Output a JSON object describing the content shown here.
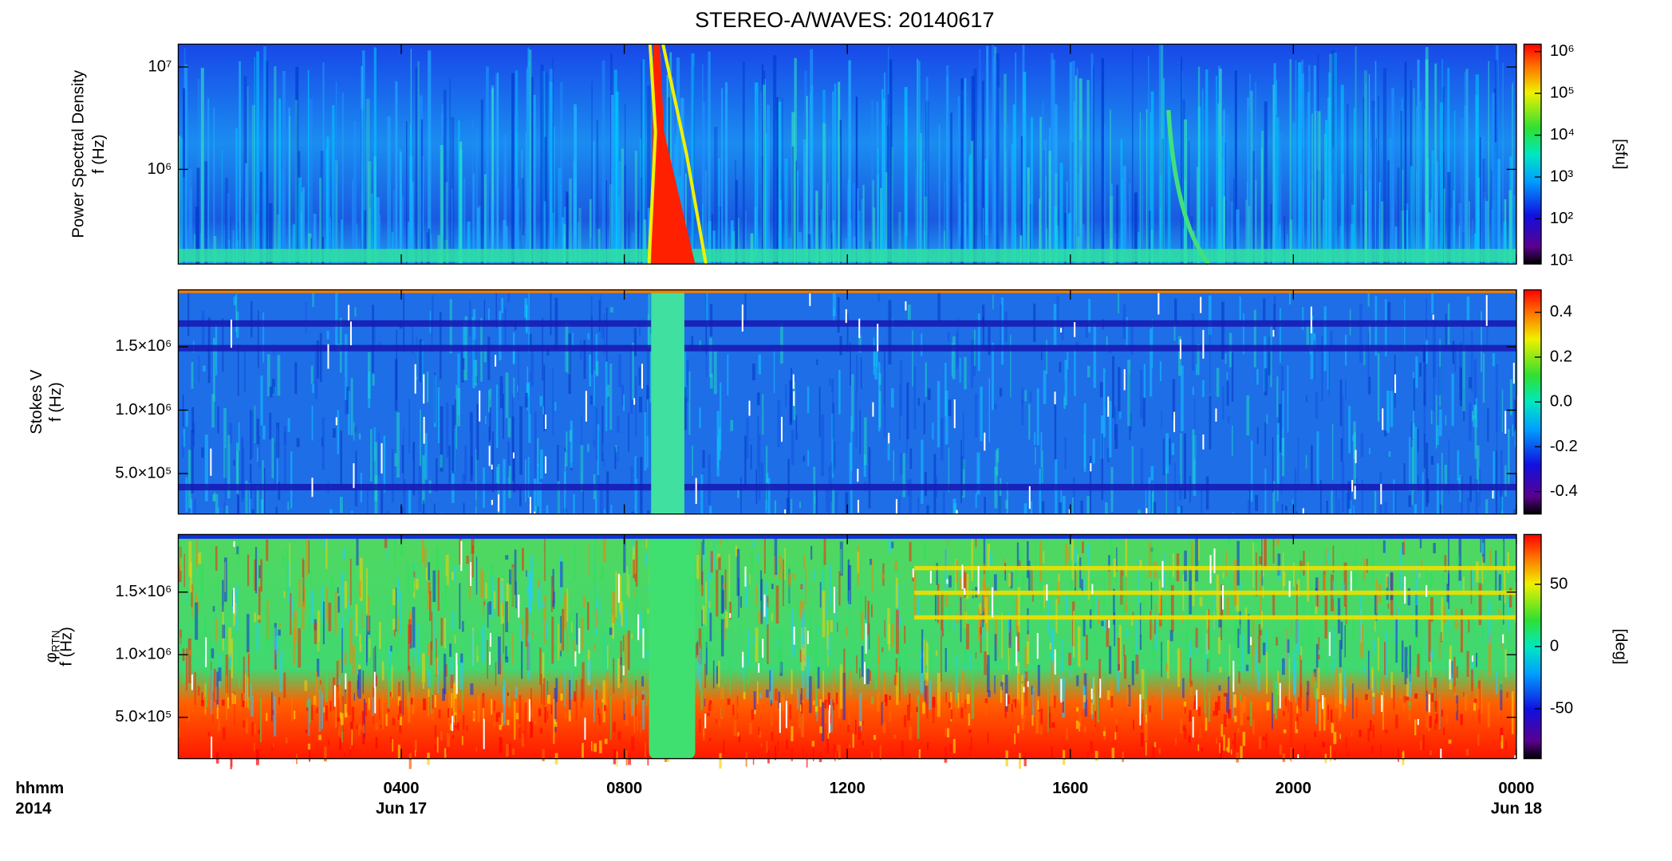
{
  "chart_data": [
    {
      "type": "spectrogram",
      "title": "STEREO-A/WAVES: 20140617",
      "quantity": "Power Spectral Density",
      "ylabel": "f (Hz)",
      "ylog": true,
      "ylim": [
        119000,
        16700000
      ],
      "yticks": [
        {
          "value": 1000000,
          "label": "10⁶"
        },
        {
          "value": 10000000,
          "label": "10⁷"
        }
      ],
      "colorbar": {
        "log": true,
        "lim": [
          8.3,
          1500000
        ],
        "ticks": [
          {
            "value": 10,
            "label": "10¹"
          },
          {
            "value": 100,
            "label": "10²"
          },
          {
            "value": 1000,
            "label": "10³"
          },
          {
            "value": 10000,
            "label": "10⁴"
          },
          {
            "value": 100000,
            "label": "10⁵"
          },
          {
            "value": 1000000,
            "label": "10⁶"
          }
        ],
        "label": "[sfu]"
      }
    },
    {
      "type": "spectrogram",
      "quantity": "Stokes V",
      "ylabel": "f (Hz)",
      "ylim": [
        181000,
        1948000
      ],
      "yticks": [
        {
          "value": 500000,
          "label": "5.0×10⁵"
        },
        {
          "value": 1000000,
          "label": "1.0×10⁶"
        },
        {
          "value": 1500000,
          "label": "1.5×10⁶"
        }
      ],
      "colorbar": {
        "lim": [
          -0.5,
          0.5
        ],
        "ticks": [
          -0.4,
          -0.2,
          {
            "value": 0,
            "label": "0.0"
          },
          0.2,
          0.4
        ]
      }
    },
    {
      "type": "spectrogram",
      "quantity": "φ",
      "quantity_subscript": "RTN",
      "ylabel": "f (Hz)",
      "ylim": [
        170000,
        1960000
      ],
      "yticks": [
        {
          "value": 500000,
          "label": "5.0×10⁵"
        },
        {
          "value": 1000000,
          "label": "1.0×10⁶"
        },
        {
          "value": 1500000,
          "label": "1.5×10⁶"
        }
      ],
      "colorbar": {
        "lim": [
          -90,
          90
        ],
        "ticks": [
          -50,
          0,
          50
        ],
        "label": "[deg]"
      },
      "xlabel": "hhmm",
      "xsublabel": "2014",
      "xlim": [
        0,
        24
      ],
      "xticks": [
        {
          "value": 4,
          "label": "0400"
        },
        {
          "value": 8,
          "label": "0800"
        },
        {
          "value": 12,
          "label": "1200"
        },
        {
          "value": 16,
          "label": "1600"
        },
        {
          "value": 20,
          "label": "2000"
        },
        {
          "value": 24,
          "label": "0000"
        }
      ],
      "xdates": [
        {
          "value": 4,
          "label": "Jun 17"
        },
        {
          "value": 24,
          "label": "Jun 18"
        }
      ]
    }
  ]
}
